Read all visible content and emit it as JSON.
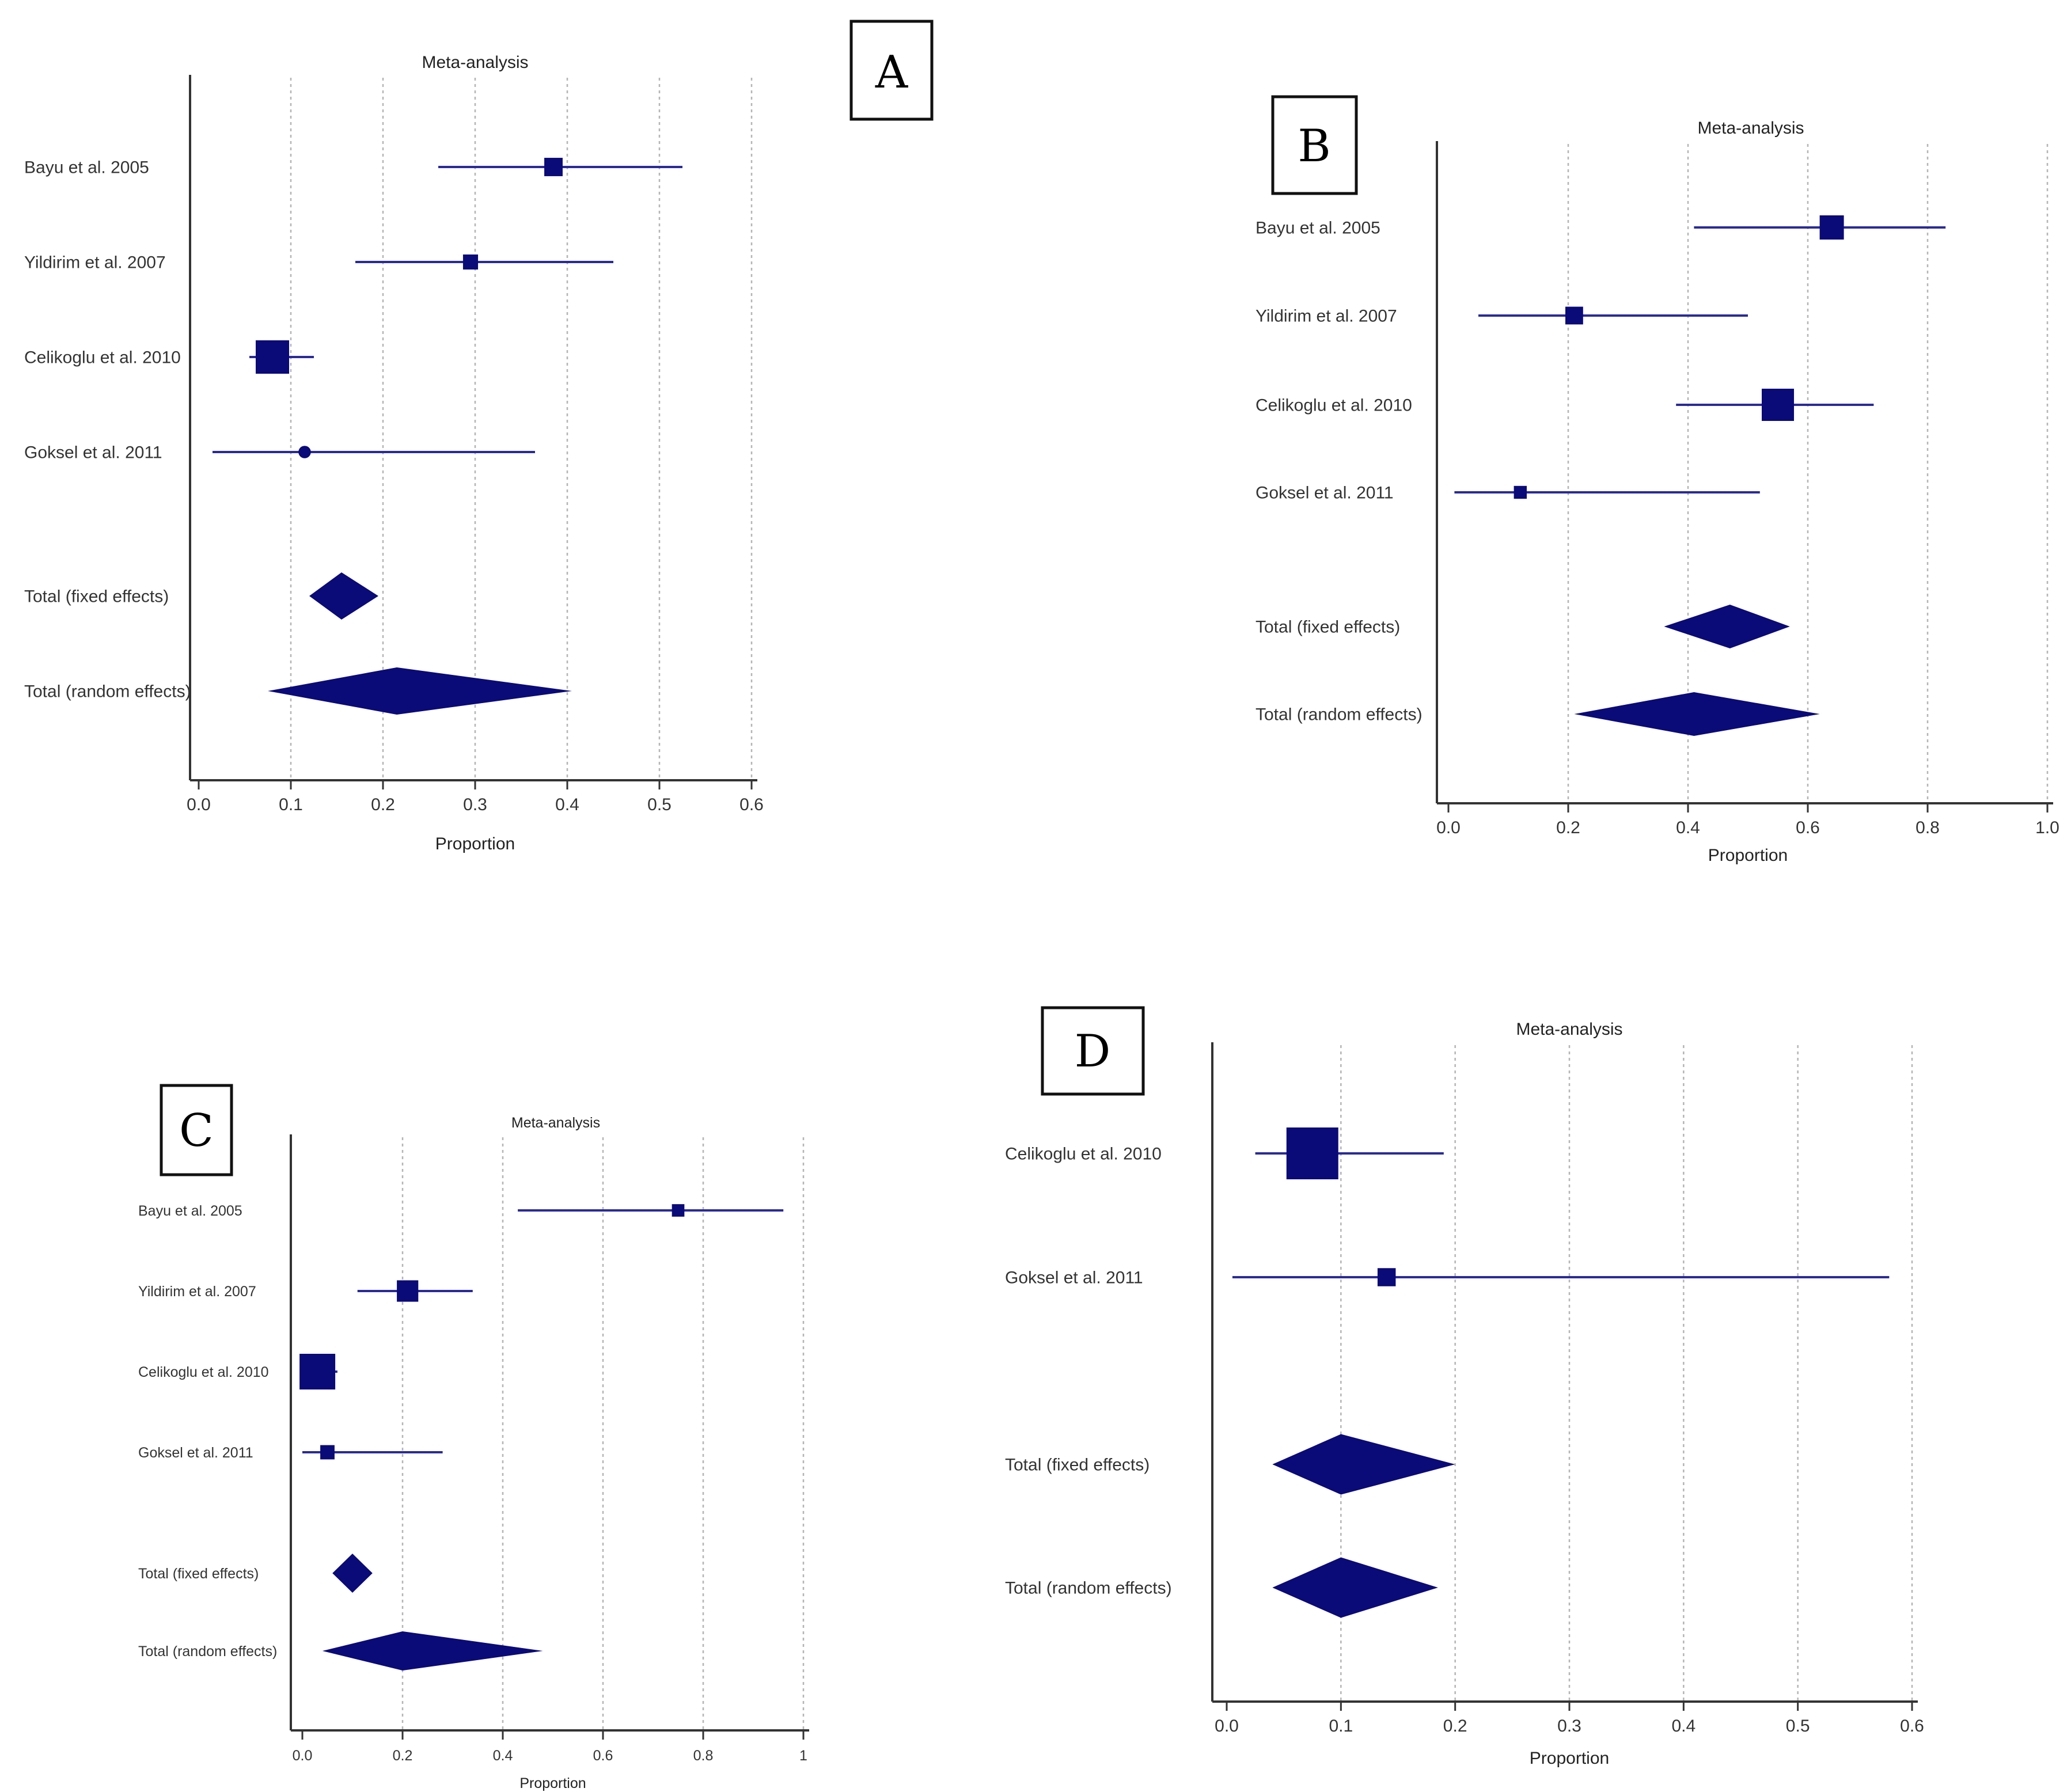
{
  "colors": {
    "mark": "#0a0a78",
    "line": "#2a2a9a",
    "axis": "#333333",
    "grid": "#b5b5b5"
  },
  "chart_data": [
    {
      "panel": "A",
      "type": "forest",
      "title": "Meta-analysis",
      "xlabel": "Proportion",
      "xlim": [
        0,
        0.6
      ],
      "ticks": [
        0,
        0.1,
        0.2,
        0.3,
        0.4,
        0.5,
        0.6
      ],
      "tick_labels": [
        "0.0",
        "0.1",
        "0.2",
        "0.3",
        "0.4",
        "0.5",
        "0.6"
      ],
      "studies": [
        {
          "label": "Bayu et al. 2005",
          "estimate": 0.385,
          "ci": [
            0.26,
            0.525
          ],
          "weight": 0.55
        },
        {
          "label": "Yildirim et al. 2007",
          "estimate": 0.295,
          "ci": [
            0.17,
            0.45
          ],
          "weight": 0.45
        },
        {
          "label": "Celikoglu et al. 2010",
          "estimate": 0.08,
          "ci": [
            0.055,
            0.125
          ],
          "weight": 1.0
        },
        {
          "label": "Goksel et al. 2011",
          "estimate": 0.115,
          "ci": [
            0.015,
            0.365
          ],
          "weight": 0.28
        }
      ],
      "totals": [
        {
          "label": "Total (fixed effects)",
          "estimate": 0.155,
          "ci": [
            0.12,
            0.195
          ]
        },
        {
          "label": "Total (random effects)",
          "estimate": 0.215,
          "ci": [
            0.075,
            0.405
          ]
        }
      ]
    },
    {
      "panel": "B",
      "type": "forest",
      "title": "Meta-analysis",
      "xlabel": "Proportion",
      "xlim": [
        0,
        1.0
      ],
      "ticks": [
        0,
        0.2,
        0.4,
        0.6,
        0.8,
        1.0
      ],
      "tick_labels": [
        "0.0",
        "0.2",
        "0.4",
        "0.6",
        "0.8",
        "1.0"
      ],
      "studies": [
        {
          "label": "Bayu et al. 2005",
          "estimate": 0.64,
          "ci": [
            0.41,
            0.83
          ],
          "weight": 0.75
        },
        {
          "label": "Yildirim et al. 2007",
          "estimate": 0.21,
          "ci": [
            0.05,
            0.5
          ],
          "weight": 0.55
        },
        {
          "label": "Celikoglu et al. 2010",
          "estimate": 0.55,
          "ci": [
            0.38,
            0.71
          ],
          "weight": 1.0
        },
        {
          "label": "Goksel et al. 2011",
          "estimate": 0.12,
          "ci": [
            0.01,
            0.52
          ],
          "weight": 0.4
        }
      ],
      "totals": [
        {
          "label": "Total (fixed effects)",
          "estimate": 0.47,
          "ci": [
            0.36,
            0.57
          ]
        },
        {
          "label": "Total (random effects)",
          "estimate": 0.41,
          "ci": [
            0.21,
            0.62
          ]
        }
      ]
    },
    {
      "panel": "C",
      "type": "forest",
      "title": "Meta-analysis",
      "xlabel": "Proportion",
      "xlim": [
        0,
        1
      ],
      "ticks": [
        0,
        0.2,
        0.4,
        0.6,
        0.8,
        1
      ],
      "tick_labels": [
        "0.0",
        "0.2",
        "0.4",
        "0.6",
        "0.8",
        "1"
      ],
      "studies": [
        {
          "label": "Bayu et al. 2005",
          "estimate": 0.75,
          "ci": [
            0.43,
            0.96
          ],
          "weight": 0.35
        },
        {
          "label": "Yildirim et al. 2007",
          "estimate": 0.21,
          "ci": [
            0.11,
            0.34
          ],
          "weight": 0.6
        },
        {
          "label": "Celikoglu et al. 2010",
          "estimate": 0.03,
          "ci": [
            0.0,
            0.07
          ],
          "weight": 1.0
        },
        {
          "label": "Goksel et al. 2011",
          "estimate": 0.05,
          "ci": [
            0.0,
            0.28
          ],
          "weight": 0.4
        }
      ],
      "totals": [
        {
          "label": "Total (fixed effects)",
          "estimate": 0.1,
          "ci": [
            0.06,
            0.14
          ]
        },
        {
          "label": "Total (random effects)",
          "estimate": 0.2,
          "ci": [
            0.04,
            0.48
          ]
        }
      ]
    },
    {
      "panel": "D",
      "type": "forest",
      "title": "Meta-analysis",
      "xlabel": "Proportion",
      "xlim": [
        0,
        0.6
      ],
      "ticks": [
        0,
        0.1,
        0.2,
        0.3,
        0.4,
        0.5,
        0.6
      ],
      "tick_labels": [
        "0.0",
        "0.1",
        "0.2",
        "0.3",
        "0.4",
        "0.5",
        "0.6"
      ],
      "studies": [
        {
          "label": "Celikoglu et al. 2010",
          "estimate": 0.075,
          "ci": [
            0.025,
            0.19
          ],
          "weight": 1.0
        },
        {
          "label": "Goksel et al. 2011",
          "estimate": 0.14,
          "ci": [
            0.005,
            0.58
          ],
          "weight": 0.35
        }
      ],
      "totals": [
        {
          "label": "Total (fixed effects)",
          "estimate": 0.1,
          "ci": [
            0.04,
            0.2
          ]
        },
        {
          "label": "Total (random effects)",
          "estimate": 0.1,
          "ci": [
            0.04,
            0.185
          ]
        }
      ]
    }
  ]
}
